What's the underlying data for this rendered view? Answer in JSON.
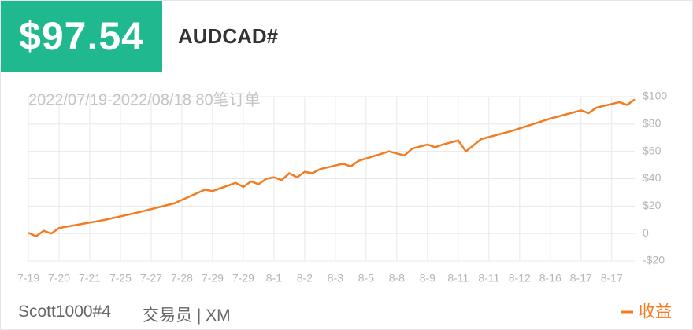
{
  "header": {
    "price": "$97.54",
    "symbol": "AUDCAD#"
  },
  "chart_data": {
    "type": "line",
    "subtitle": "2022/07/19-2022/08/18 80笔订单",
    "x": [
      0,
      1,
      2,
      3,
      4,
      7,
      10,
      14,
      19,
      23,
      24,
      27,
      28,
      29,
      30,
      31,
      32,
      33,
      34,
      35,
      36,
      37,
      38,
      41,
      42,
      43,
      47,
      49,
      50,
      52,
      53,
      54,
      56,
      57,
      59,
      63,
      68,
      72,
      73,
      74,
      77,
      78,
      79
    ],
    "series": [
      {
        "name": "收益",
        "color": "#f47b20",
        "values": [
          0.5,
          -2,
          2,
          0,
          4,
          7,
          10,
          15,
          22,
          32,
          31,
          37,
          34,
          38,
          36,
          40,
          41,
          39,
          44,
          41,
          45,
          44,
          47,
          51,
          49,
          53,
          60,
          57,
          62,
          65,
          63,
          65,
          68,
          60,
          69,
          75,
          84,
          90,
          88,
          92,
          96,
          94,
          98
        ]
      }
    ],
    "xlim": [
      0,
      79
    ],
    "xticks": [
      {
        "value": 0,
        "label": "7-19"
      },
      {
        "value": 4,
        "label": "7-20"
      },
      {
        "value": 8,
        "label": "7-21"
      },
      {
        "value": 12,
        "label": "7-25"
      },
      {
        "value": 16,
        "label": "7-27"
      },
      {
        "value": 20,
        "label": "7-28"
      },
      {
        "value": 24,
        "label": "7-29"
      },
      {
        "value": 28,
        "label": "7-29"
      },
      {
        "value": 32,
        "label": "8-1"
      },
      {
        "value": 36,
        "label": "8-2"
      },
      {
        "value": 40,
        "label": "8-3"
      },
      {
        "value": 44,
        "label": "8-5"
      },
      {
        "value": 48,
        "label": "8-8"
      },
      {
        "value": 52,
        "label": "8-9"
      },
      {
        "value": 56,
        "label": "8-11"
      },
      {
        "value": 60,
        "label": "8-11"
      },
      {
        "value": 64,
        "label": "8-12"
      },
      {
        "value": 68,
        "label": "8-16"
      },
      {
        "value": 72,
        "label": "8-17"
      },
      {
        "value": 76,
        "label": "8-17"
      }
    ],
    "ylim": [
      -20,
      100
    ],
    "yticks": [
      {
        "value": 100,
        "label": "$100"
      },
      {
        "value": 80,
        "label": "$80"
      },
      {
        "value": 60,
        "label": "$60"
      },
      {
        "value": 40,
        "label": "$40"
      },
      {
        "value": 20,
        "label": "$20"
      },
      {
        "value": 0,
        "label": "0"
      },
      {
        "value": -20,
        "label": "-$20"
      }
    ],
    "grid": true
  },
  "footer": {
    "trader": "Scott1000#4",
    "broker": "交易员 | XM"
  }
}
